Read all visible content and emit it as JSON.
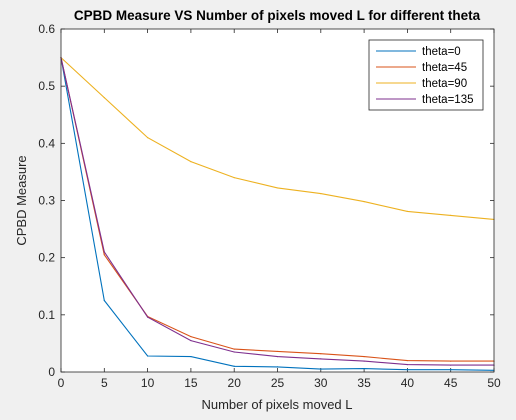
{
  "chart_data": {
    "type": "line",
    "title": "CPBD Measure VS Number of pixels moved L for different theta",
    "xlabel": "Number of pixels moved L",
    "ylabel": "CPBD Measure",
    "xlim": [
      0,
      50
    ],
    "ylim": [
      0,
      0.6
    ],
    "xticks": [
      0,
      5,
      10,
      15,
      20,
      25,
      30,
      35,
      40,
      45,
      50
    ],
    "yticks": [
      0,
      0.1,
      0.2,
      0.3,
      0.4,
      0.5,
      0.6
    ],
    "grid": false,
    "legend_position": "top-right",
    "x": [
      0,
      5,
      10,
      15,
      20,
      25,
      30,
      35,
      40,
      45,
      50
    ],
    "series": [
      {
        "name": "theta=0",
        "color": "#0072BD",
        "values": [
          0.55,
          0.125,
          0.028,
          0.027,
          0.01,
          0.009,
          0.005,
          0.006,
          0.004,
          0.004,
          0.003
        ]
      },
      {
        "name": "theta=45",
        "color": "#D95319",
        "values": [
          0.55,
          0.205,
          0.097,
          0.062,
          0.04,
          0.036,
          0.032,
          0.027,
          0.02,
          0.019,
          0.019
        ]
      },
      {
        "name": "theta=90",
        "color": "#EDB120",
        "values": [
          0.55,
          0.48,
          0.41,
          0.368,
          0.34,
          0.322,
          0.312,
          0.298,
          0.281,
          0.274,
          0.267
        ]
      },
      {
        "name": "theta=135",
        "color": "#7E2F8E",
        "values": [
          0.55,
          0.21,
          0.096,
          0.055,
          0.035,
          0.027,
          0.023,
          0.019,
          0.013,
          0.012,
          0.012
        ]
      }
    ]
  }
}
